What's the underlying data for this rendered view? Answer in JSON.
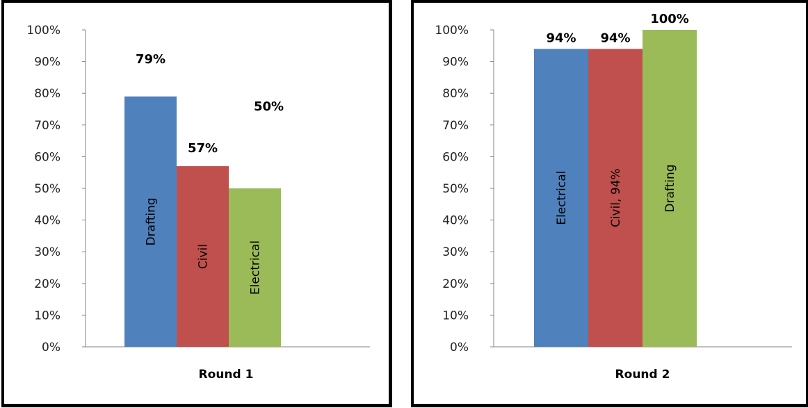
{
  "colors": {
    "blue": "#4f81bd",
    "red": "#c0504d",
    "green": "#9bbb59",
    "axis": "#868686"
  },
  "chart_data": [
    {
      "type": "bar",
      "categories": [
        "Round 1"
      ],
      "ylim": [
        0,
        100
      ],
      "yticks": [
        "0%",
        "10%",
        "20%",
        "30%",
        "40%",
        "50%",
        "60%",
        "70%",
        "80%",
        "90%",
        "100%"
      ],
      "grid": false,
      "series": [
        {
          "name": "Drafting",
          "values": [
            79
          ],
          "color": "#4f81bd",
          "data_label": "79%",
          "bar_label": "Drafting"
        },
        {
          "name": "Civil",
          "values": [
            57
          ],
          "color": "#c0504d",
          "data_label": "57%",
          "bar_label": "Civil"
        },
        {
          "name": "Electrical",
          "values": [
            50
          ],
          "color": "#9bbb59",
          "data_label": "50%",
          "bar_label": "Electrical"
        }
      ]
    },
    {
      "type": "bar",
      "categories": [
        "Round 2"
      ],
      "ylim": [
        0,
        100
      ],
      "yticks": [
        "0%",
        "10%",
        "20%",
        "30%",
        "40%",
        "50%",
        "60%",
        "70%",
        "80%",
        "90%",
        "100%"
      ],
      "grid": false,
      "series": [
        {
          "name": "Electrical",
          "values": [
            94
          ],
          "color": "#4f81bd",
          "data_label": "94%",
          "bar_label": "Electrical"
        },
        {
          "name": "Civil",
          "values": [
            94
          ],
          "color": "#c0504d",
          "data_label": "94%",
          "bar_label": "Civil, 94%"
        },
        {
          "name": "Drafting",
          "values": [
            100
          ],
          "color": "#9bbb59",
          "data_label": "100%",
          "bar_label": "Drafting"
        }
      ]
    }
  ]
}
